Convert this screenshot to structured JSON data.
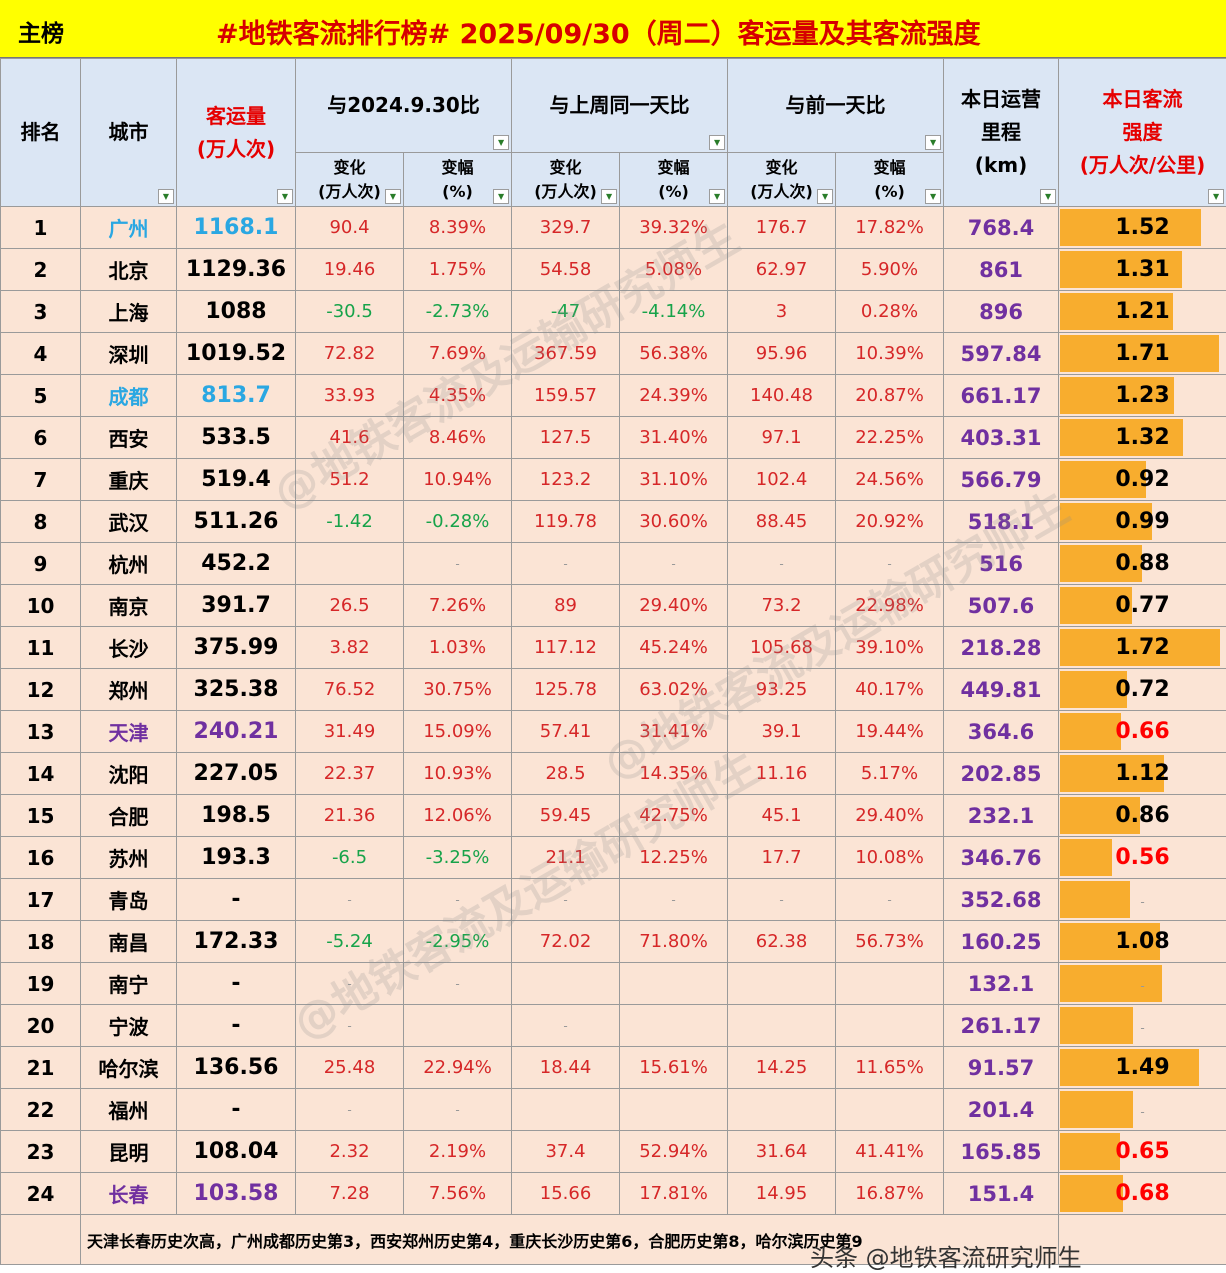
{
  "header": {
    "tab_label": "主榜",
    "title": "#地铁客流排行榜# 2025/09/30（周二）客运量及其客流强度"
  },
  "columns": {
    "rank": "排名",
    "city": "城市",
    "volume_line1": "客运量",
    "volume_line2": "(万人次)",
    "yoy": "与2024.9.30比",
    "wow": "与上周同一天比",
    "dod": "与前一天比",
    "km_line1": "本日运营",
    "km_line2": "里程",
    "km_line3": "(km)",
    "intensity_line1": "本日客流",
    "intensity_line2": "强度",
    "intensity_line3": "(万人次/公里)",
    "change_line1": "变化",
    "change_line2": "(万人次)",
    "pct_line1": "变幅",
    "pct_line2": "(%)",
    "filter_icon": "dropdown-arrow-icon",
    "filter_glyph": "▼"
  },
  "rows": [
    {
      "rank": "1",
      "city": "广州",
      "volume": "1168.1",
      "yoy_change": "90.4",
      "yoy_pct": "8.39%",
      "wow_change": "329.7",
      "wow_pct": "39.32%",
      "dod_change": "176.7",
      "dod_pct": "17.82%",
      "km": "768.4",
      "intensity": "1.52",
      "intensity_value": 1.52
    },
    {
      "rank": "2",
      "city": "北京",
      "volume": "1129.36",
      "yoy_change": "19.46",
      "yoy_pct": "1.75%",
      "wow_change": "54.58",
      "wow_pct": "5.08%",
      "dod_change": "62.97",
      "dod_pct": "5.90%",
      "km": "861",
      "intensity": "1.31",
      "intensity_value": 1.31
    },
    {
      "rank": "3",
      "city": "上海",
      "volume": "1088",
      "yoy_change": "-30.5",
      "yoy_pct": "-2.73%",
      "wow_change": "-47",
      "wow_pct": "-4.14%",
      "dod_change": "3",
      "dod_pct": "0.28%",
      "km": "896",
      "intensity": "1.21",
      "intensity_value": 1.21
    },
    {
      "rank": "4",
      "city": "深圳",
      "volume": "1019.52",
      "yoy_change": "72.82",
      "yoy_pct": "7.69%",
      "wow_change": "367.59",
      "wow_pct": "56.38%",
      "dod_change": "95.96",
      "dod_pct": "10.39%",
      "km": "597.84",
      "intensity": "1.71",
      "intensity_value": 1.71
    },
    {
      "rank": "5",
      "city": "成都",
      "volume": "813.7",
      "yoy_change": "33.93",
      "yoy_pct": "4.35%",
      "wow_change": "159.57",
      "wow_pct": "24.39%",
      "dod_change": "140.48",
      "dod_pct": "20.87%",
      "km": "661.17",
      "intensity": "1.23",
      "intensity_value": 1.23
    },
    {
      "rank": "6",
      "city": "西安",
      "volume": "533.5",
      "yoy_change": "41.6",
      "yoy_pct": "8.46%",
      "wow_change": "127.5",
      "wow_pct": "31.40%",
      "dod_change": "97.1",
      "dod_pct": "22.25%",
      "km": "403.31",
      "intensity": "1.32",
      "intensity_value": 1.32
    },
    {
      "rank": "7",
      "city": "重庆",
      "volume": "519.4",
      "yoy_change": "51.2",
      "yoy_pct": "10.94%",
      "wow_change": "123.2",
      "wow_pct": "31.10%",
      "dod_change": "102.4",
      "dod_pct": "24.56%",
      "km": "566.79",
      "intensity": "0.92",
      "intensity_value": 0.92
    },
    {
      "rank": "8",
      "city": "武汉",
      "volume": "511.26",
      "yoy_change": "-1.42",
      "yoy_pct": "-0.28%",
      "wow_change": "119.78",
      "wow_pct": "30.60%",
      "dod_change": "88.45",
      "dod_pct": "20.92%",
      "km": "518.1",
      "intensity": "0.99",
      "intensity_value": 0.99
    },
    {
      "rank": "9",
      "city": "杭州",
      "volume": "452.2",
      "yoy_change": "",
      "yoy_pct": "-",
      "wow_change": "-",
      "wow_pct": "-",
      "dod_change": "-",
      "dod_pct": "-",
      "km": "516",
      "intensity": "0.88",
      "intensity_value": 0.88
    },
    {
      "rank": "10",
      "city": "南京",
      "volume": "391.7",
      "yoy_change": "26.5",
      "yoy_pct": "7.26%",
      "wow_change": "89",
      "wow_pct": "29.40%",
      "dod_change": "73.2",
      "dod_pct": "22.98%",
      "km": "507.6",
      "intensity": "0.77",
      "intensity_value": 0.77
    },
    {
      "rank": "11",
      "city": "长沙",
      "volume": "375.99",
      "yoy_change": "3.82",
      "yoy_pct": "1.03%",
      "wow_change": "117.12",
      "wow_pct": "45.24%",
      "dod_change": "105.68",
      "dod_pct": "39.10%",
      "km": "218.28",
      "intensity": "1.72",
      "intensity_value": 1.72
    },
    {
      "rank": "12",
      "city": "郑州",
      "volume": "325.38",
      "yoy_change": "76.52",
      "yoy_pct": "30.75%",
      "wow_change": "125.78",
      "wow_pct": "63.02%",
      "dod_change": "93.25",
      "dod_pct": "40.17%",
      "km": "449.81",
      "intensity": "0.72",
      "intensity_value": 0.72
    },
    {
      "rank": "13",
      "city": "天津",
      "volume": "240.21",
      "yoy_change": "31.49",
      "yoy_pct": "15.09%",
      "wow_change": "57.41",
      "wow_pct": "31.41%",
      "dod_change": "39.1",
      "dod_pct": "19.44%",
      "km": "364.6",
      "intensity": "0.66",
      "intensity_value": 0.66
    },
    {
      "rank": "14",
      "city": "沈阳",
      "volume": "227.05",
      "yoy_change": "22.37",
      "yoy_pct": "10.93%",
      "wow_change": "28.5",
      "wow_pct": "14.35%",
      "dod_change": "11.16",
      "dod_pct": "5.17%",
      "km": "202.85",
      "intensity": "1.12",
      "intensity_value": 1.12
    },
    {
      "rank": "15",
      "city": "合肥",
      "volume": "198.5",
      "yoy_change": "21.36",
      "yoy_pct": "12.06%",
      "wow_change": "59.45",
      "wow_pct": "42.75%",
      "dod_change": "45.1",
      "dod_pct": "29.40%",
      "km": "232.1",
      "intensity": "0.86",
      "intensity_value": 0.86
    },
    {
      "rank": "16",
      "city": "苏州",
      "volume": "193.3",
      "yoy_change": "-6.5",
      "yoy_pct": "-3.25%",
      "wow_change": "21.1",
      "wow_pct": "12.25%",
      "dod_change": "17.7",
      "dod_pct": "10.08%",
      "km": "346.76",
      "intensity": "0.56",
      "intensity_value": 0.56
    },
    {
      "rank": "17",
      "city": "青岛",
      "volume": "-",
      "yoy_change": "-",
      "yoy_pct": "-",
      "wow_change": "-",
      "wow_pct": "-",
      "dod_change": "-",
      "dod_pct": "-",
      "km": "352.68",
      "intensity": "-",
      "intensity_value": 0.75
    },
    {
      "rank": "18",
      "city": "南昌",
      "volume": "172.33",
      "yoy_change": "-5.24",
      "yoy_pct": "-2.95%",
      "wow_change": "72.02",
      "wow_pct": "71.80%",
      "dod_change": "62.38",
      "dod_pct": "56.73%",
      "km": "160.25",
      "intensity": "1.08",
      "intensity_value": 1.08
    },
    {
      "rank": "19",
      "city": "南宁",
      "volume": "-",
      "yoy_change": "-",
      "yoy_pct": "-",
      "wow_change": "",
      "wow_pct": "",
      "dod_change": "",
      "dod_pct": "",
      "km": "132.1",
      "intensity": "-",
      "intensity_value": 1.1
    },
    {
      "rank": "20",
      "city": "宁波",
      "volume": "-",
      "yoy_change": "-",
      "yoy_pct": "",
      "wow_change": "-",
      "wow_pct": "",
      "dod_change": "",
      "dod_pct": "",
      "km": "261.17",
      "intensity": "-",
      "intensity_value": 0.78
    },
    {
      "rank": "21",
      "city": "哈尔滨",
      "volume": "136.56",
      "yoy_change": "25.48",
      "yoy_pct": "22.94%",
      "wow_change": "18.44",
      "wow_pct": "15.61%",
      "dod_change": "14.25",
      "dod_pct": "11.65%",
      "km": "91.57",
      "intensity": "1.49",
      "intensity_value": 1.49
    },
    {
      "rank": "22",
      "city": "福州",
      "volume": "-",
      "yoy_change": "-",
      "yoy_pct": "-",
      "wow_change": "",
      "wow_pct": "",
      "dod_change": "",
      "dod_pct": "",
      "km": "201.4",
      "intensity": "-",
      "intensity_value": 0.79
    },
    {
      "rank": "23",
      "city": "昆明",
      "volume": "108.04",
      "yoy_change": "2.32",
      "yoy_pct": "2.19%",
      "wow_change": "37.4",
      "wow_pct": "52.94%",
      "dod_change": "31.64",
      "dod_pct": "41.41%",
      "km": "165.85",
      "intensity": "0.65",
      "intensity_value": 0.65
    },
    {
      "rank": "24",
      "city": "长春",
      "volume": "103.58",
      "yoy_change": "7.28",
      "yoy_pct": "7.56%",
      "wow_change": "15.66",
      "wow_pct": "17.81%",
      "dod_change": "14.95",
      "dod_pct": "16.87%",
      "km": "151.4",
      "intensity": "0.68",
      "intensity_value": 0.68
    }
  ],
  "highlight": {
    "blue_cities": [
      "广州",
      "成都"
    ],
    "purple_cities": [
      "天津",
      "长春"
    ],
    "low_intensity": [
      "0.66",
      "0.56",
      "0.65",
      "0.68"
    ]
  },
  "footer": {
    "note": "天津长春历史次高，广州成都历史第3，西安郑州历史第4，重庆长沙历史第6，合肥历史第8，哈尔滨历史第9"
  },
  "watermark": {
    "text": "@地铁客流及运输研究师生",
    "credit": "头条 @地铁客流研究师生"
  },
  "colors": {
    "title_bg": "#ffff00",
    "title_text": "#d60000",
    "header_bg": "#dbe6f4",
    "row_bg": "#fbe4d5",
    "bar": "#f8ad2e",
    "positive": "#d62728",
    "negative": "#17a34a",
    "km": "#7030a0",
    "city_blue": "#2aa7e2",
    "city_purple": "#7030a0"
  },
  "intensity_scale_max": 1.72
}
